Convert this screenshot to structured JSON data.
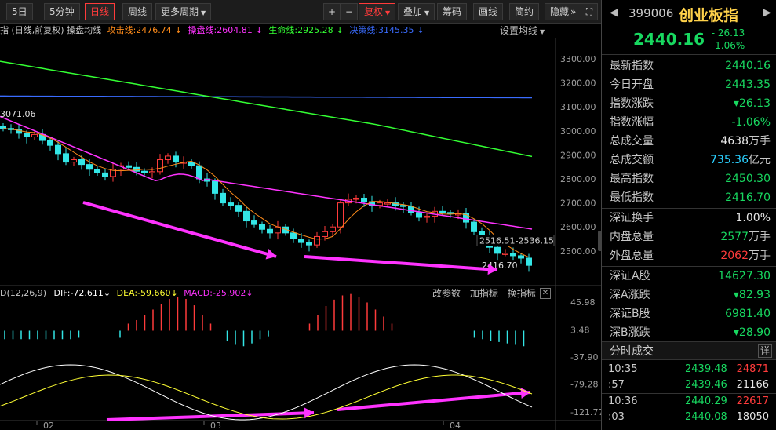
{
  "toolbar": {
    "buttons": [
      "5日",
      "5分钟",
      "日线",
      "周线",
      "更多周期"
    ],
    "right_buttons": [
      "复权",
      "叠加",
      "筹码",
      "画线",
      "简约",
      "隐藏"
    ],
    "plus": "+",
    "minus": "−",
    "more": "»",
    "fullscreen": "⛶"
  },
  "legend": {
    "prefix": "指 (日线,前复权) 操盘均线",
    "attack": "攻击线:2476.74",
    "operate": "操盘线:2604.81",
    "life": "生命线:2925.28",
    "decision": "决策线:3145.35",
    "settings": "设置均线",
    "colors": {
      "attack": "#ff8c1a",
      "operate": "#ff33ff",
      "life": "#33ff33",
      "decision": "#3a6cff"
    }
  },
  "chart": {
    "y_ticks": [
      "3300.00",
      "3200.00",
      "3100.00",
      "3000.00",
      "2900.00",
      "2800.00",
      "2700.00",
      "2600.00",
      "2500.00"
    ],
    "annot_high": "3071.06",
    "annot_low": "2416.70",
    "annot_range": "2516.51-2536.15"
  },
  "macd": {
    "label": "D(12,26,9)",
    "dif": "DIF:-72.611",
    "dea": "DEA:-59.660",
    "macd": "MACD:-25.902",
    "tools": [
      "改参数",
      "加指标",
      "换指标"
    ],
    "close": "✕",
    "y_ticks": [
      "45.98",
      "3.48",
      "-37.90",
      "-79.28",
      "-121.77"
    ]
  },
  "x_labels": [
    "02",
    "03",
    "04"
  ],
  "panel": {
    "code": "399006",
    "name": "创业板指",
    "price": "2440.16",
    "change": "- 26.13",
    "change_pct": "- 1.06%",
    "rows1": [
      {
        "label": "最新指数",
        "value": "2440.16",
        "unit": "",
        "color": "#18d860"
      },
      {
        "label": "今日开盘",
        "value": "2443.35",
        "unit": "",
        "color": "#18d860"
      },
      {
        "label": "指数涨跌",
        "value": "▾26.13",
        "unit": "",
        "color": "#18d860"
      },
      {
        "label": "指数涨幅",
        "value": "-1.06%",
        "unit": "",
        "color": "#18d860"
      },
      {
        "label": "总成交量",
        "value": "4638",
        "unit": "万手",
        "color": "#e6e6e6"
      },
      {
        "label": "总成交额",
        "value": "735.36",
        "unit": "亿元",
        "color": "#2ad0ff"
      },
      {
        "label": "最高指数",
        "value": "2450.30",
        "unit": "",
        "color": "#18d860"
      },
      {
        "label": "最低指数",
        "value": "2416.70",
        "unit": "",
        "color": "#18d860"
      }
    ],
    "rows2": [
      {
        "label": "深证换手",
        "value": "1.00%",
        "unit": "",
        "color": "#e6e6e6"
      },
      {
        "label": "内盘总量",
        "value": "2577",
        "unit": "万手",
        "color": "#18d860"
      },
      {
        "label": "外盘总量",
        "value": "2062",
        "unit": "万手",
        "color": "#ff3b3b"
      }
    ],
    "rows3": [
      {
        "label": "深证A股",
        "value": "14627.30",
        "unit": "",
        "color": "#18d860"
      },
      {
        "label": "深A涨跌",
        "value": "▾82.93",
        "unit": "",
        "color": "#18d860"
      },
      {
        "label": "深证B股",
        "value": "6981.40",
        "unit": "",
        "color": "#18d860"
      },
      {
        "label": "深B涨跌",
        "value": "▾28.90",
        "unit": "",
        "color": "#18d860"
      }
    ],
    "ticks_title": "分时成交",
    "ticks_more": "详",
    "ticks": [
      {
        "time": "10:35",
        "price": "2439.48",
        "vol": "24871",
        "color": "#ff3b3b"
      },
      {
        "time": ":57",
        "price": "2439.46",
        "vol": "21166",
        "color": "#e6e6e6"
      },
      {
        "time": "10:36",
        "price": "2440.29",
        "vol": "22617",
        "color": "#ff3b3b"
      },
      {
        "time": ":03",
        "price": "2440.08",
        "vol": "18050",
        "color": "#e6e6e6"
      }
    ]
  }
}
